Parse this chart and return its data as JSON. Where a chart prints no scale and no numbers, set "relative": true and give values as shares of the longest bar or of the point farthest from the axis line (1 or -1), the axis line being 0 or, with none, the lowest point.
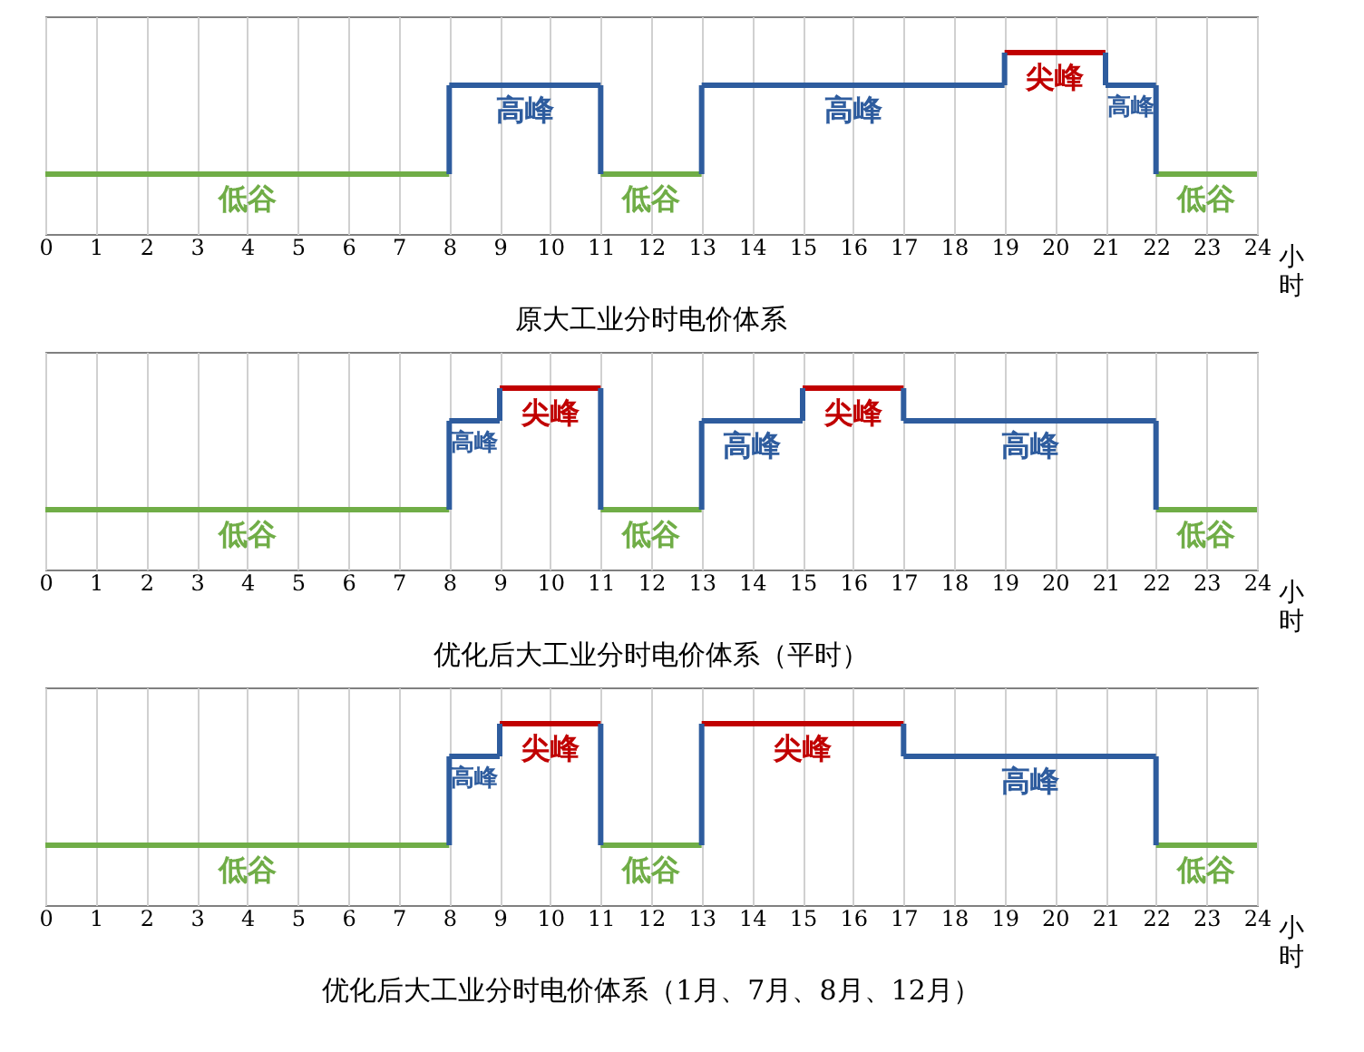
{
  "chart_data": [
    {
      "type": "line",
      "relative": true,
      "title": "原大工业分时电价体系",
      "xlabel": "小时",
      "xlim": [
        0,
        24
      ],
      "xticks": [
        0,
        1,
        2,
        3,
        4,
        5,
        6,
        7,
        8,
        9,
        10,
        11,
        12,
        13,
        14,
        15,
        16,
        17,
        18,
        19,
        20,
        21,
        22,
        23,
        24
      ],
      "grid": "x",
      "series": [
        {
          "name": "低谷",
          "color": "#70ad47",
          "x": [
            0,
            8
          ],
          "values": [
            0.33,
            0.33
          ]
        },
        {
          "name": "高峰",
          "color": "#2e5c9e",
          "x": [
            8,
            11
          ],
          "values": [
            0.82,
            0.82
          ]
        },
        {
          "name": "低谷",
          "color": "#70ad47",
          "x": [
            11,
            13
          ],
          "values": [
            0.33,
            0.33
          ]
        },
        {
          "name": "高峰",
          "color": "#2e5c9e",
          "x": [
            13,
            19
          ],
          "values": [
            0.82,
            0.82
          ]
        },
        {
          "name": "尖峰",
          "color": "#c00000",
          "x": [
            19,
            21
          ],
          "values": [
            1.0,
            1.0
          ]
        },
        {
          "name": "高峰",
          "color": "#2e5c9e",
          "x": [
            21,
            22
          ],
          "values": [
            0.82,
            0.82
          ]
        },
        {
          "name": "低谷",
          "color": "#70ad47",
          "x": [
            22,
            24
          ],
          "values": [
            0.33,
            0.33
          ]
        },
        {
          "color": "#2e5c9e",
          "x": [
            8,
            8,
            9.5,
            11,
            11,
            12,
            13,
            13,
            16,
            19,
            19,
            20,
            21,
            21,
            21.5,
            22,
            22
          ],
          "values": [
            0.33,
            0.82,
            null,
            0.82,
            0.33,
            null,
            0.33,
            0.82,
            null,
            0.82,
            1.0,
            null,
            1.0,
            0.82,
            null,
            0.82,
            0.33
          ]
        }
      ]
    },
    {
      "type": "line",
      "relative": true,
      "title": "优化后大工业分时电价体系（平时）",
      "xlabel": "小时",
      "xlim": [
        0,
        24
      ],
      "xticks": [
        0,
        1,
        2,
        3,
        4,
        5,
        6,
        7,
        8,
        9,
        10,
        11,
        12,
        13,
        14,
        15,
        16,
        17,
        18,
        19,
        20,
        21,
        22,
        23,
        24
      ],
      "grid": "x",
      "series": [
        {
          "name": "低谷",
          "color": "#70ad47",
          "x": [
            0,
            8
          ],
          "values": [
            0.33,
            0.33
          ]
        },
        {
          "name": "高峰",
          "color": "#2e5c9e",
          "x": [
            8,
            9
          ],
          "values": [
            0.82,
            0.82
          ]
        },
        {
          "name": "尖峰",
          "color": "#c00000",
          "x": [
            9,
            11
          ],
          "values": [
            1.0,
            1.0
          ]
        },
        {
          "name": "低谷",
          "color": "#70ad47",
          "x": [
            11,
            13
          ],
          "values": [
            0.33,
            0.33
          ]
        },
        {
          "name": "高峰",
          "color": "#2e5c9e",
          "x": [
            13,
            15
          ],
          "values": [
            0.82,
            0.82
          ]
        },
        {
          "name": "尖峰",
          "color": "#c00000",
          "x": [
            15,
            17
          ],
          "values": [
            1.0,
            1.0
          ]
        },
        {
          "name": "高峰",
          "color": "#2e5c9e",
          "x": [
            17,
            22
          ],
          "values": [
            0.82,
            0.82
          ]
        },
        {
          "name": "低谷",
          "color": "#70ad47",
          "x": [
            22,
            24
          ],
          "values": [
            0.33,
            0.33
          ]
        },
        {
          "color": "#2e5c9e",
          "x": [
            8,
            8,
            8.5,
            9,
            9,
            10,
            11,
            11,
            12,
            13,
            13,
            14,
            15,
            15,
            16,
            17,
            17,
            20,
            22,
            22
          ],
          "values": [
            0.33,
            0.82,
            null,
            0.82,
            1.0,
            null,
            1.0,
            0.33,
            null,
            0.33,
            0.82,
            null,
            0.82,
            1.0,
            null,
            1.0,
            0.82,
            null,
            0.82,
            0.33
          ]
        }
      ]
    },
    {
      "type": "line",
      "relative": true,
      "title": "优化后大工业分时电价体系（1月、7月、8月、12月）",
      "xlabel": "小时",
      "xlim": [
        0,
        24
      ],
      "xticks": [
        0,
        1,
        2,
        3,
        4,
        5,
        6,
        7,
        8,
        9,
        10,
        11,
        12,
        13,
        14,
        15,
        16,
        17,
        18,
        19,
        20,
        21,
        22,
        23,
        24
      ],
      "grid": "x",
      "series": [
        {
          "name": "低谷",
          "color": "#70ad47",
          "x": [
            0,
            8
          ],
          "values": [
            0.33,
            0.33
          ]
        },
        {
          "name": "高峰",
          "color": "#2e5c9e",
          "x": [
            8,
            9
          ],
          "values": [
            0.82,
            0.82
          ]
        },
        {
          "name": "尖峰",
          "color": "#c00000",
          "x": [
            9,
            11
          ],
          "values": [
            1.0,
            1.0
          ]
        },
        {
          "name": "低谷",
          "color": "#70ad47",
          "x": [
            11,
            13
          ],
          "values": [
            0.33,
            0.33
          ]
        },
        {
          "name": "尖峰",
          "color": "#c00000",
          "x": [
            13,
            17
          ],
          "values": [
            1.0,
            1.0
          ]
        },
        {
          "name": "高峰",
          "color": "#2e5c9e",
          "x": [
            17,
            22
          ],
          "values": [
            0.82,
            0.82
          ]
        },
        {
          "name": "低谷",
          "color": "#70ad47",
          "x": [
            22,
            24
          ],
          "values": [
            0.33,
            0.33
          ]
        },
        {
          "color": "#2e5c9e",
          "x": [
            8,
            8,
            8.5,
            9,
            9,
            10,
            11,
            11,
            12,
            13,
            13,
            15,
            17,
            17,
            20,
            22,
            22
          ],
          "values": [
            0.33,
            0.82,
            null,
            0.82,
            1.0,
            null,
            1.0,
            0.33,
            null,
            0.33,
            1.0,
            null,
            1.0,
            0.82,
            null,
            0.82,
            0.33
          ]
        }
      ]
    }
  ]
}
